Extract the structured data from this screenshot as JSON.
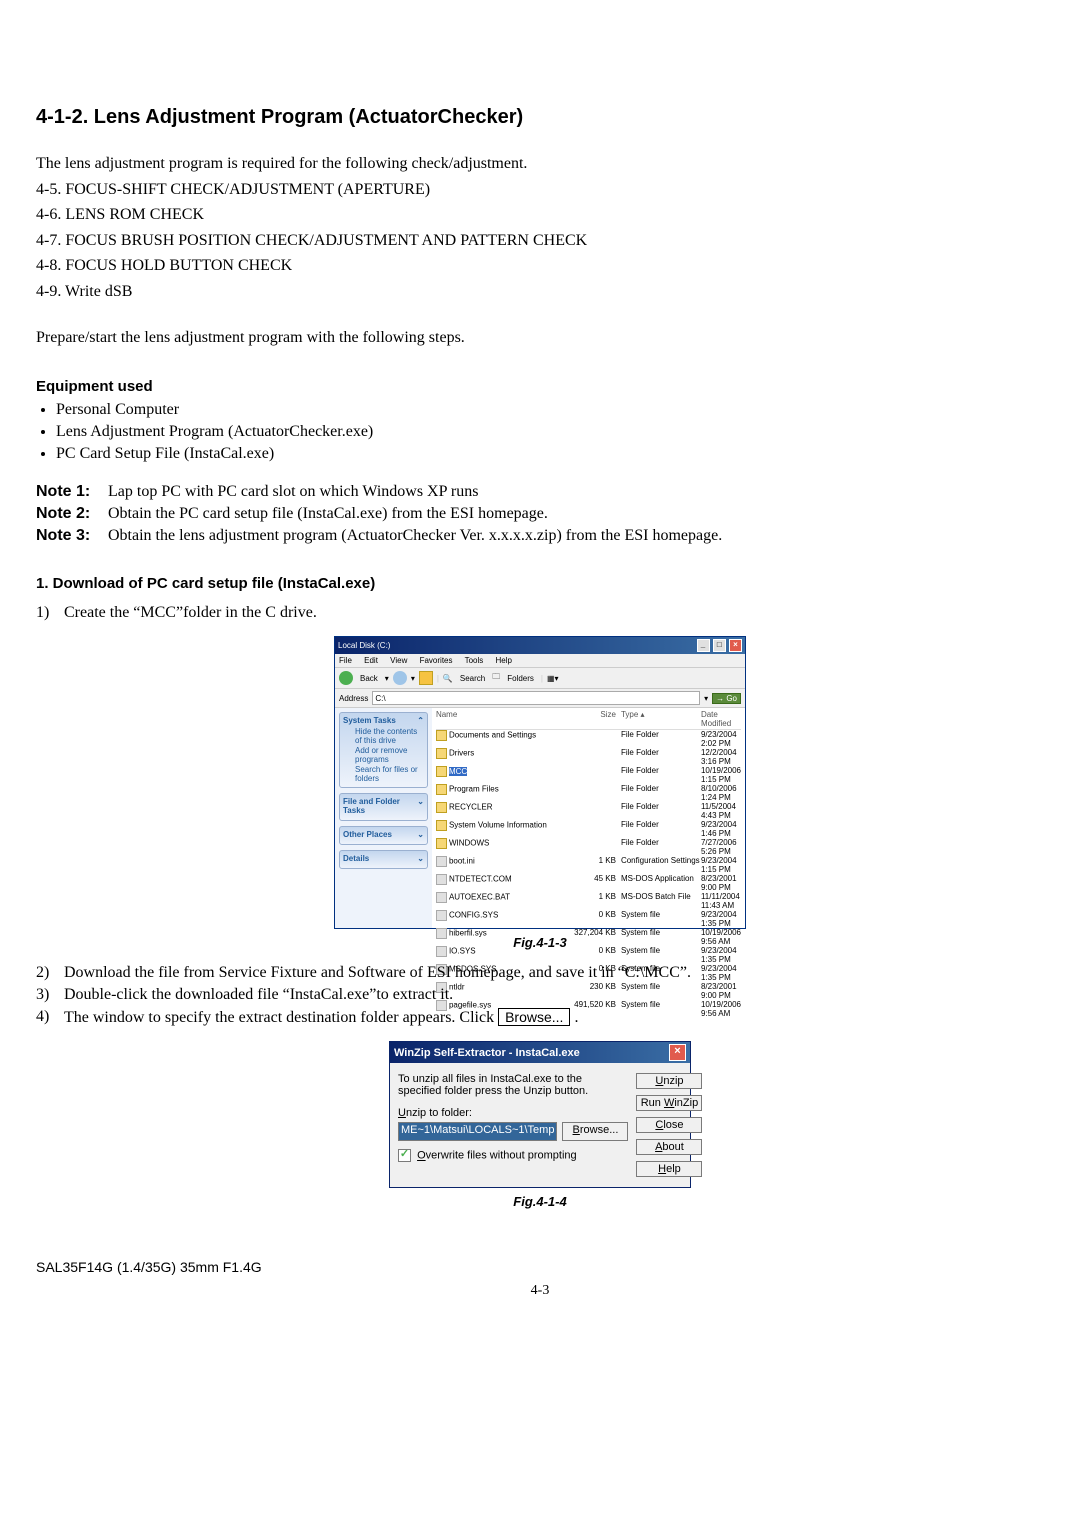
{
  "doc": {
    "heading": "4-1-2.  Lens Adjustment Program (ActuatorChecker)",
    "intro": "The lens adjustment program is required for the following check/adjustment.",
    "checks": [
      "4-5. FOCUS-SHIFT CHECK/ADJUSTMENT (APERTURE)",
      "4-6. LENS ROM CHECK",
      "4-7. FOCUS BRUSH POSITION CHECK/ADJUSTMENT AND PATTERN CHECK",
      "4-8. FOCUS HOLD BUTTON CHECK",
      "4-9. Write dSB"
    ],
    "prepare": "Prepare/start the lens adjustment program with the following steps.",
    "equip_heading": "Equipment used",
    "equipment": [
      "Personal Computer",
      "Lens Adjustment Program (ActuatorChecker.exe)",
      "PC Card Setup File (InstaCal.exe)"
    ],
    "notes": [
      {
        "label": "Note 1:",
        "text": "Lap top PC with PC card slot on which Windows XP runs"
      },
      {
        "label": "Note 2:",
        "text": "Obtain the PC card setup file (InstaCal.exe) from the ESI homepage."
      },
      {
        "label": "Note 3:",
        "text": "Obtain the lens adjustment program (ActuatorChecker Ver. x.x.x.x.zip) from the ESI homepage."
      }
    ],
    "section1_heading": "1.   Download of PC card setup file (InstaCal.exe)",
    "step1_num": "1)",
    "step1_text": "Create the “MCC”folder in the C drive.",
    "fig1_caption": "Fig.4-1-3",
    "step2_num": "2)",
    "step2_text": "Download the file from Service Fixture and Software of ESI homepage, and save it in “C:\\MCC”.",
    "step3_num": "3)",
    "step3_text": "Double-click the downloaded file “InstaCal.exe”to extract it.",
    "step4_num": "4)",
    "step4_text_a": "The window to specify the extract destination folder appears. Click ",
    "step4_btn": "Browse...",
    "step4_text_b": " .",
    "fig2_caption": "Fig.4-1-4",
    "footer_model": "SAL35F14G (1.4/35G) 35mm F1.4G",
    "footer_page": "4-3"
  },
  "explorer": {
    "title": "Local Disk (C:)",
    "menu": [
      "File",
      "Edit",
      "View",
      "Favorites",
      "Tools",
      "Help"
    ],
    "toolbar": {
      "back": "Back",
      "search": "Search",
      "folders": "Folders"
    },
    "addr_label": "Address",
    "addr_val": "C:\\",
    "go": "Go",
    "side": {
      "sys": {
        "title": "System Tasks",
        "items": [
          "Hide the contents of this drive",
          "Add or remove programs",
          "Search for files or folders"
        ]
      },
      "ff": {
        "title": "File and Folder Tasks"
      },
      "op": {
        "title": "Other Places"
      },
      "dt": {
        "title": "Details"
      }
    },
    "cols": {
      "name": "Name",
      "size": "Size",
      "type": "Type",
      "date": "Date Modified"
    },
    "rows": [
      {
        "icon": "folder",
        "name": "Documents and Settings",
        "size": "",
        "type": "File Folder",
        "date": "9/23/2004 2:02 PM"
      },
      {
        "icon": "folder",
        "name": "Drivers",
        "size": "",
        "type": "File Folder",
        "date": "12/2/2004 3:16 PM"
      },
      {
        "icon": "folder",
        "name": "MCC",
        "size": "",
        "type": "File Folder",
        "date": "10/19/2006 1:15 PM",
        "sel": true
      },
      {
        "icon": "folder",
        "name": "Program Files",
        "size": "",
        "type": "File Folder",
        "date": "8/10/2006 1:24 PM"
      },
      {
        "icon": "folder",
        "name": "RECYCLER",
        "size": "",
        "type": "File Folder",
        "date": "11/5/2004 4:43 PM"
      },
      {
        "icon": "folder",
        "name": "System Volume Information",
        "size": "",
        "type": "File Folder",
        "date": "9/23/2004 1:46 PM"
      },
      {
        "icon": "folder",
        "name": "WINDOWS",
        "size": "",
        "type": "File Folder",
        "date": "7/27/2006 5:26 PM"
      },
      {
        "icon": "file",
        "name": "boot.ini",
        "size": "1 KB",
        "type": "Configuration Settings",
        "date": "9/23/2004 1:15 PM"
      },
      {
        "icon": "file",
        "name": "NTDETECT.COM",
        "size": "45 KB",
        "type": "MS-DOS Application",
        "date": "8/23/2001 9:00 PM"
      },
      {
        "icon": "file",
        "name": "AUTOEXEC.BAT",
        "size": "1 KB",
        "type": "MS-DOS Batch File",
        "date": "11/11/2004 11:43 AM"
      },
      {
        "icon": "file",
        "name": "CONFIG.SYS",
        "size": "0 KB",
        "type": "System file",
        "date": "9/23/2004 1:35 PM"
      },
      {
        "icon": "file",
        "name": "hiberfil.sys",
        "size": "327,204 KB",
        "type": "System file",
        "date": "10/19/2006 9:56 AM"
      },
      {
        "icon": "file",
        "name": "IO.SYS",
        "size": "0 KB",
        "type": "System file",
        "date": "9/23/2004 1:35 PM"
      },
      {
        "icon": "file",
        "name": "MSDOS.SYS",
        "size": "0 KB",
        "type": "System file",
        "date": "9/23/2004 1:35 PM"
      },
      {
        "icon": "file",
        "name": "ntldr",
        "size": "230 KB",
        "type": "System file",
        "date": "8/23/2001 9:00 PM"
      },
      {
        "icon": "file",
        "name": "pagefile.sys",
        "size": "491,520 KB",
        "type": "System file",
        "date": "10/19/2006 9:56 AM"
      }
    ]
  },
  "winzip": {
    "title": "WinZip Self-Extractor - InstaCal.exe",
    "text": "To unzip all files in InstaCal.exe to the specified folder press the Unzip button.",
    "label": "Unzip to folder:",
    "path": "ME~1\\Matsui\\LOCALS~1\\Temp",
    "browse": "Browse...",
    "overwrite": "Overwrite files without prompting",
    "btns": {
      "unzip": "Unzip",
      "runwz": "Run WinZip",
      "close": "Close",
      "about": "About",
      "help": "Help"
    }
  }
}
